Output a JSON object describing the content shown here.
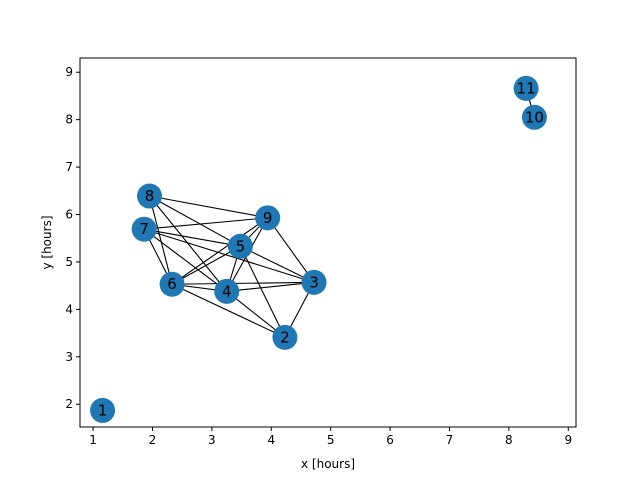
{
  "figure": {
    "xlabel": "x [hours]",
    "ylabel": "y [hours]",
    "background": "#ffffff",
    "node_color": "#1f77b4",
    "edge_color": "#000000",
    "label_color": "#000000"
  },
  "chart_data": {
    "type": "graph",
    "title": "",
    "xlabel": "x [hours]",
    "ylabel": "y [hours]",
    "xlim": [
      0.78,
      9.13
    ],
    "ylim": [
      1.52,
      9.3
    ],
    "xticks": [
      1,
      2,
      3,
      4,
      5,
      6,
      7,
      8,
      9
    ],
    "yticks": [
      2,
      3,
      4,
      5,
      6,
      7,
      8,
      9
    ],
    "nodes": [
      {
        "id": "1",
        "x": 1.16,
        "y": 1.87
      },
      {
        "id": "2",
        "x": 4.23,
        "y": 3.41
      },
      {
        "id": "3",
        "x": 4.72,
        "y": 4.57
      },
      {
        "id": "4",
        "x": 3.25,
        "y": 4.38
      },
      {
        "id": "5",
        "x": 3.48,
        "y": 5.33
      },
      {
        "id": "6",
        "x": 2.33,
        "y": 4.53
      },
      {
        "id": "7",
        "x": 1.86,
        "y": 5.69
      },
      {
        "id": "8",
        "x": 1.95,
        "y": 6.39
      },
      {
        "id": "9",
        "x": 3.94,
        "y": 5.93
      },
      {
        "id": "10",
        "x": 8.43,
        "y": 8.05
      },
      {
        "id": "11",
        "x": 8.29,
        "y": 8.66
      }
    ],
    "edges": [
      [
        "8",
        "9"
      ],
      [
        "8",
        "5"
      ],
      [
        "8",
        "4"
      ],
      [
        "8",
        "6"
      ],
      [
        "7",
        "9"
      ],
      [
        "7",
        "5"
      ],
      [
        "7",
        "6"
      ],
      [
        "7",
        "4"
      ],
      [
        "7",
        "3"
      ],
      [
        "9",
        "5"
      ],
      [
        "9",
        "6"
      ],
      [
        "9",
        "4"
      ],
      [
        "9",
        "3"
      ],
      [
        "5",
        "6"
      ],
      [
        "5",
        "4"
      ],
      [
        "5",
        "3"
      ],
      [
        "5",
        "2"
      ],
      [
        "6",
        "4"
      ],
      [
        "6",
        "3"
      ],
      [
        "6",
        "2"
      ],
      [
        "4",
        "3"
      ],
      [
        "4",
        "2"
      ],
      [
        "3",
        "2"
      ],
      [
        "11",
        "10"
      ]
    ]
  }
}
